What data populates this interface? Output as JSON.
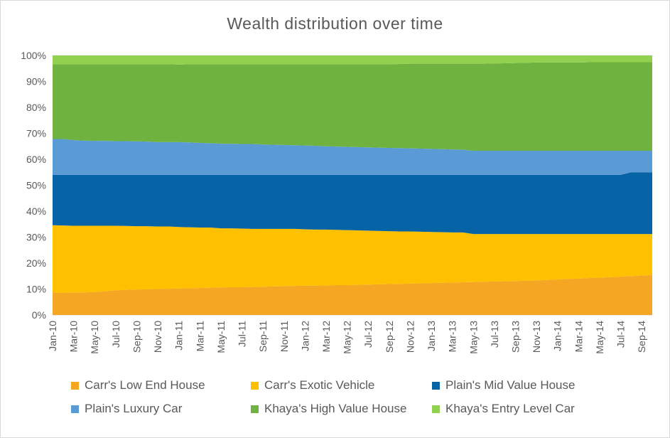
{
  "chart_data": {
    "type": "area",
    "stacked": "percent",
    "title": "Wealth distribution over time",
    "xlabel": "",
    "ylabel": "",
    "ylim": [
      0,
      100
    ],
    "y_ticks": [
      "0%",
      "10%",
      "20%",
      "30%",
      "40%",
      "50%",
      "60%",
      "70%",
      "80%",
      "90%",
      "100%"
    ],
    "x": [
      "Jan-10",
      "Feb-10",
      "Mar-10",
      "Apr-10",
      "May-10",
      "Jun-10",
      "Jul-10",
      "Aug-10",
      "Sep-10",
      "Oct-10",
      "Nov-10",
      "Dec-10",
      "Jan-11",
      "Feb-11",
      "Mar-11",
      "Apr-11",
      "May-11",
      "Jun-11",
      "Jul-11",
      "Aug-11",
      "Sep-11",
      "Oct-11",
      "Nov-11",
      "Dec-11",
      "Jan-12",
      "Feb-12",
      "Mar-12",
      "Apr-12",
      "May-12",
      "Jun-12",
      "Jul-12",
      "Aug-12",
      "Sep-12",
      "Oct-12",
      "Nov-12",
      "Dec-12",
      "Jan-13",
      "Feb-13",
      "Mar-13",
      "Apr-13",
      "May-13",
      "Jun-13",
      "Jul-13",
      "Aug-13",
      "Sep-13",
      "Oct-13",
      "Nov-13",
      "Dec-13",
      "Jan-14",
      "Feb-14",
      "Mar-14",
      "Apr-14",
      "May-14",
      "Jun-14",
      "Jul-14",
      "Aug-14",
      "Sep-14",
      "Oct-14"
    ],
    "x_tick_labels": [
      "Jan-10",
      "Mar-10",
      "May-10",
      "Jul-10",
      "Sep-10",
      "Nov-10",
      "Jan-11",
      "Mar-11",
      "May-11",
      "Jul-11",
      "Sep-11",
      "Nov-11",
      "Jan-12",
      "Mar-12",
      "May-12",
      "Jul-12",
      "Sep-12",
      "Nov-12",
      "Jan-13",
      "Mar-13",
      "May-13",
      "Jul-13",
      "Sep-13",
      "Nov-13",
      "Jan-14",
      "Mar-14",
      "May-14",
      "Jul-14",
      "Sep-14"
    ],
    "grid": true,
    "legend_position": "bottom",
    "series": [
      {
        "name": "Carr's Low End House",
        "color": "#F5A623",
        "values": [
          8.6,
          8.6,
          8.7,
          8.7,
          8.8,
          9.2,
          9.5,
          9.7,
          9.8,
          9.9,
          10.0,
          10.1,
          10.2,
          10.3,
          10.4,
          10.5,
          10.6,
          10.7,
          10.7,
          10.8,
          10.9,
          11.0,
          11.1,
          11.2,
          11.3,
          11.3,
          11.4,
          11.5,
          11.5,
          11.6,
          11.7,
          11.8,
          11.9,
          12.0,
          12.1,
          12.2,
          12.3,
          12.4,
          12.5,
          12.6,
          12.7,
          12.8,
          12.9,
          13.0,
          13.1,
          13.2,
          13.3,
          13.5,
          13.7,
          13.9,
          14.0,
          14.2,
          14.4,
          14.6,
          14.8,
          15.0,
          15.2,
          15.4
        ]
      },
      {
        "name": "Carr's Exotic Vehicle",
        "color": "#FFC000",
        "values": [
          26.0,
          25.9,
          25.7,
          25.7,
          25.6,
          25.2,
          24.9,
          24.6,
          24.4,
          24.3,
          24.1,
          24.0,
          23.7,
          23.5,
          23.3,
          23.2,
          22.8,
          22.7,
          22.6,
          22.4,
          22.3,
          22.2,
          22.1,
          22.0,
          21.7,
          21.6,
          21.5,
          21.3,
          21.2,
          21.0,
          20.8,
          20.6,
          20.4,
          20.2,
          20.1,
          19.9,
          19.7,
          19.5,
          19.3,
          19.2,
          18.5,
          18.4,
          18.3,
          18.2,
          18.1,
          18.0,
          17.9,
          17.7,
          17.5,
          17.3,
          17.2,
          17.0,
          16.8,
          16.6,
          16.4,
          16.2,
          16.0,
          15.8
        ]
      },
      {
        "name": "Plain's Mid Value House",
        "color": "#0563A6",
        "values": [
          19.4,
          19.5,
          19.6,
          19.6,
          19.6,
          19.6,
          19.6,
          19.7,
          19.8,
          19.8,
          19.9,
          19.9,
          20.1,
          20.2,
          20.3,
          20.3,
          20.6,
          20.6,
          20.7,
          20.8,
          20.8,
          20.8,
          20.8,
          20.8,
          21.0,
          21.1,
          21.1,
          21.2,
          21.3,
          21.4,
          21.5,
          21.6,
          21.7,
          21.8,
          21.8,
          21.9,
          22.0,
          22.1,
          22.2,
          22.2,
          22.8,
          22.8,
          22.8,
          22.8,
          22.8,
          22.8,
          22.8,
          22.8,
          22.8,
          22.8,
          22.8,
          22.8,
          22.8,
          22.8,
          22.8,
          23.8,
          23.8,
          23.8
        ]
      },
      {
        "name": "Plain's Luxury Car",
        "color": "#5B9BD5",
        "values": [
          13.8,
          13.8,
          13.4,
          13.2,
          13.1,
          13.1,
          13.0,
          13.0,
          12.9,
          12.8,
          12.6,
          12.6,
          12.6,
          12.5,
          12.3,
          12.2,
          12.0,
          12.0,
          11.9,
          11.9,
          11.7,
          11.6,
          11.5,
          11.4,
          11.3,
          11.2,
          11.0,
          10.9,
          10.8,
          10.7,
          10.6,
          10.5,
          10.4,
          10.3,
          10.2,
          10.1,
          10.0,
          9.9,
          9.8,
          9.7,
          9.3,
          9.3,
          9.3,
          9.3,
          9.3,
          9.3,
          9.3,
          9.3,
          9.3,
          9.3,
          9.3,
          9.3,
          9.3,
          9.3,
          9.3,
          8.3,
          8.3,
          8.3
        ]
      },
      {
        "name": "Khaya's High Value House",
        "color": "#70B23F",
        "values": [
          28.8,
          28.8,
          29.2,
          29.4,
          29.5,
          29.5,
          29.6,
          29.6,
          29.7,
          29.8,
          30.0,
          30.0,
          29.9,
          30.1,
          30.3,
          30.4,
          30.6,
          30.6,
          30.7,
          30.7,
          30.9,
          31.0,
          31.1,
          31.2,
          31.3,
          31.4,
          31.6,
          31.7,
          31.8,
          31.9,
          32.0,
          32.1,
          32.2,
          32.4,
          32.6,
          32.7,
          32.8,
          32.9,
          33.0,
          33.1,
          33.5,
          33.5,
          33.6,
          33.7,
          33.8,
          33.9,
          34.0,
          34.0,
          34.0,
          34.0,
          34.0,
          34.1,
          34.1,
          34.1,
          34.1,
          34.1,
          34.1,
          34.1
        ]
      },
      {
        "name": "Khaya's Entry Level Car",
        "color": "#92D050",
        "values": [
          3.4,
          3.4,
          3.4,
          3.4,
          3.4,
          3.4,
          3.4,
          3.4,
          3.4,
          3.4,
          3.4,
          3.4,
          3.5,
          3.4,
          3.4,
          3.4,
          3.4,
          3.4,
          3.4,
          3.4,
          3.4,
          3.4,
          3.4,
          3.4,
          3.4,
          3.4,
          3.4,
          3.4,
          3.4,
          3.4,
          3.4,
          3.4,
          3.4,
          3.3,
          3.2,
          3.2,
          3.2,
          3.2,
          3.2,
          3.2,
          3.2,
          3.2,
          3.1,
          3.0,
          2.9,
          2.8,
          2.7,
          2.7,
          2.7,
          2.7,
          2.7,
          2.6,
          2.6,
          2.6,
          2.6,
          2.6,
          2.6,
          2.6
        ]
      }
    ]
  }
}
